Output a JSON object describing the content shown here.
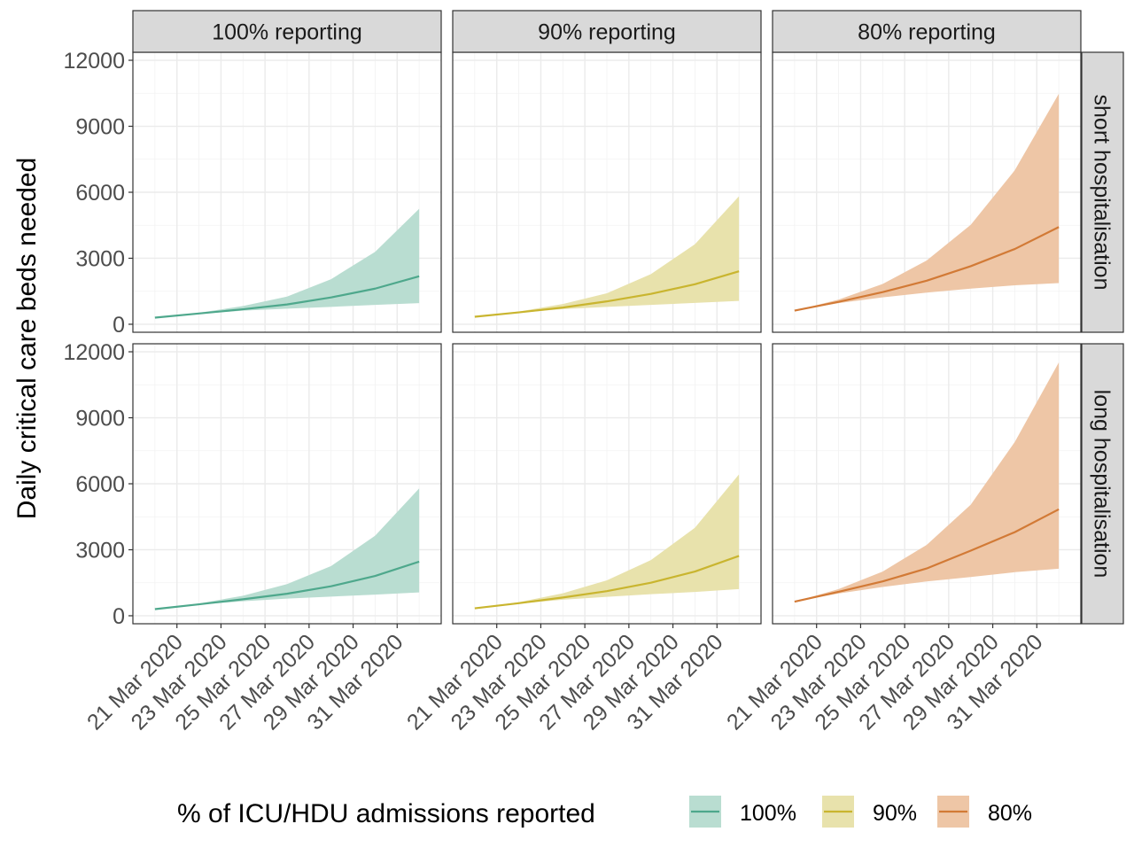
{
  "chart_data": {
    "type": "area",
    "ylabel": "Daily critical care beds needed",
    "xlabel": "",
    "ylim": [
      0,
      12000
    ],
    "yticks": [
      0,
      3000,
      6000,
      9000,
      12000
    ],
    "xticks": [
      "21 Mar 2020",
      "23 Mar 2020",
      "25 Mar 2020",
      "27 Mar 2020",
      "29 Mar 2020",
      "31 Mar 2020"
    ],
    "xrange": [
      "2020-03-19",
      "2020-04-02"
    ],
    "dates": [
      "2020-03-20",
      "2020-03-22",
      "2020-03-24",
      "2020-03-26",
      "2020-03-28",
      "2020-03-30",
      "2020-04-01"
    ],
    "grid": true,
    "facet_columns": [
      "100% reporting",
      "90% reporting",
      "80% reporting"
    ],
    "facet_rows": [
      "short hospitalisation",
      "long hospitalisation"
    ],
    "legend": {
      "title": "% of ICU/HDU admissions reported",
      "position": "bottom",
      "entries": [
        {
          "label": "100%",
          "color": "#4EA88C",
          "fill": "#B9DDD1"
        },
        {
          "label": "90%",
          "color": "#C9B52F",
          "fill": "#E8E2AC"
        },
        {
          "label": "80%",
          "color": "#D27A36",
          "fill": "#EEC6A6"
        }
      ]
    },
    "panels": [
      {
        "row": "short hospitalisation",
        "col": "100% reporting",
        "series": "100%",
        "median": [
          300,
          490,
          680,
          900,
          1220,
          1620,
          2180
        ],
        "lower": [
          300,
          470,
          620,
          710,
          790,
          880,
          960
        ],
        "upper": [
          300,
          520,
          830,
          1260,
          2050,
          3290,
          5250
        ]
      },
      {
        "row": "short hospitalisation",
        "col": "90% reporting",
        "series": "90%",
        "median": [
          340,
          540,
          760,
          1040,
          1380,
          1820,
          2410
        ],
        "lower": [
          340,
          520,
          690,
          790,
          880,
          970,
          1060
        ],
        "upper": [
          340,
          580,
          920,
          1410,
          2280,
          3640,
          5820
        ]
      },
      {
        "row": "short hospitalisation",
        "col": "80% reporting",
        "series": "80%",
        "median": [
          620,
          1020,
          1460,
          1980,
          2640,
          3420,
          4420
        ],
        "lower": [
          620,
          960,
          1220,
          1440,
          1620,
          1770,
          1870
        ],
        "upper": [
          620,
          1120,
          1830,
          2900,
          4520,
          7000,
          10480
        ]
      },
      {
        "row": "long hospitalisation",
        "col": "100% reporting",
        "series": "100%",
        "median": [
          300,
          520,
          750,
          1000,
          1340,
          1810,
          2460
        ],
        "lower": [
          300,
          500,
          660,
          780,
          870,
          960,
          1060
        ],
        "upper": [
          300,
          560,
          910,
          1440,
          2260,
          3640,
          5790
        ]
      },
      {
        "row": "long hospitalisation",
        "col": "90% reporting",
        "series": "90%",
        "median": [
          340,
          570,
          830,
          1120,
          1500,
          2010,
          2720
        ],
        "lower": [
          340,
          550,
          730,
          860,
          980,
          1080,
          1210
        ],
        "upper": [
          340,
          620,
          1020,
          1610,
          2530,
          4000,
          6430
        ]
      },
      {
        "row": "long hospitalisation",
        "col": "80% reporting",
        "series": "80%",
        "median": [
          640,
          1090,
          1560,
          2150,
          2960,
          3800,
          4840
        ],
        "lower": [
          640,
          1010,
          1310,
          1560,
          1760,
          1980,
          2140
        ],
        "upper": [
          640,
          1210,
          2010,
          3220,
          5050,
          7900,
          11520
        ]
      }
    ]
  }
}
